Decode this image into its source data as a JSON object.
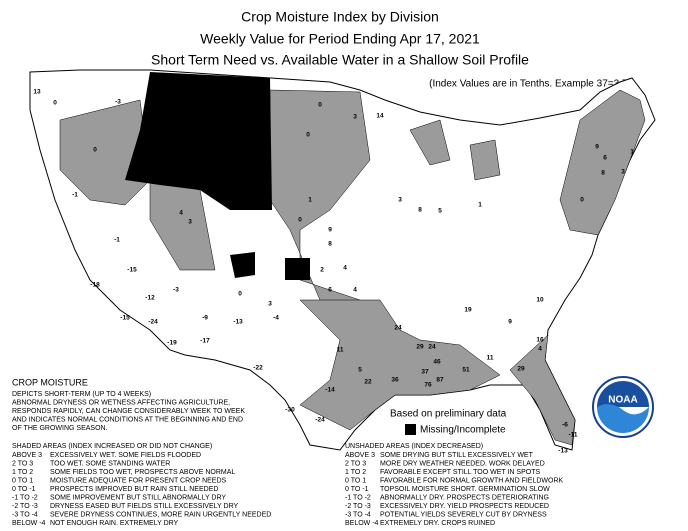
{
  "header": {
    "title": "Crop Moisture Index by Division",
    "subtitle": "Weekly Value for Period Ending Apr 17, 2021",
    "subtitle2": "Short Term Need vs. Available Water in a Shallow Soil Profile",
    "note": "(Index Values are in Tenths. Example 37=3.7)"
  },
  "map": {
    "divisions": [
      {
        "value": 13,
        "shaded": false
      },
      {
        "value": 0,
        "shaded": false
      },
      {
        "value": -3,
        "shaded": false
      },
      {
        "value": 0,
        "shaded": true
      },
      {
        "value": -1,
        "shaded": true
      },
      {
        "value": -1,
        "shaded": false
      },
      {
        "value": -15,
        "shaded": false
      },
      {
        "value": -18,
        "shaded": false
      },
      {
        "value": -15,
        "shaded": false
      },
      {
        "value": -12,
        "shaded": false
      },
      {
        "value": -24,
        "shaded": false
      },
      {
        "value": -19,
        "shaded": false
      },
      {
        "value": -3,
        "shaded": false
      },
      {
        "value": 0,
        "shaded": true
      },
      {
        "value": -9,
        "shaded": false
      },
      {
        "value": -17,
        "shaded": false
      },
      {
        "value": -13,
        "shaded": true
      },
      {
        "value": -22,
        "shaded": false
      },
      {
        "value": 3,
        "shaded": false
      },
      {
        "value": -4,
        "shaded": false
      },
      {
        "value": 4,
        "shaded": true
      },
      {
        "value": 3,
        "shaded": true
      },
      {
        "value": 0,
        "shaded": true
      },
      {
        "value": 1,
        "shaded": false
      },
      {
        "value": 9,
        "shaded": false
      },
      {
        "value": 8,
        "shaded": false
      },
      {
        "value": 2,
        "shaded": false
      },
      {
        "value": 4,
        "shaded": false
      },
      {
        "value": 6,
        "shaded": true
      },
      {
        "value": 4,
        "shaded": true
      },
      {
        "value": 0,
        "shaded": true
      },
      {
        "value": 0,
        "shaded": true
      },
      {
        "value": 14,
        "shaded": false
      },
      {
        "value": 3,
        "shaded": false
      },
      {
        "value": 3,
        "shaded": false
      },
      {
        "value": 8,
        "shaded": false
      },
      {
        "value": 5,
        "shaded": false
      },
      {
        "value": 1,
        "shaded": false
      },
      {
        "value": 11,
        "shaded": true
      },
      {
        "value": 5,
        "shaded": true
      },
      {
        "value": 22,
        "shaded": true
      },
      {
        "value": -14,
        "shaded": true
      },
      {
        "value": -30,
        "shaded": true
      },
      {
        "value": -24,
        "shaded": true
      },
      {
        "value": 24,
        "shaded": false
      },
      {
        "value": 29,
        "shaded": true
      },
      {
        "value": 24,
        "shaded": true
      },
      {
        "value": 46,
        "shaded": true
      },
      {
        "value": 36,
        "shaded": true
      },
      {
        "value": 37,
        "shaded": true
      },
      {
        "value": 76,
        "shaded": true
      },
      {
        "value": 87,
        "shaded": true
      },
      {
        "value": 51,
        "shaded": true
      },
      {
        "value": 11,
        "shaded": false
      },
      {
        "value": 29,
        "shaded": true
      },
      {
        "value": 4,
        "shaded": true
      },
      {
        "value": -6,
        "shaded": true
      },
      {
        "value": -11,
        "shaded": true
      },
      {
        "value": -13,
        "shaded": false
      },
      {
        "value": 10,
        "shaded": false
      },
      {
        "value": 16,
        "shaded": false
      },
      {
        "value": 19,
        "shaded": false
      },
      {
        "value": 9,
        "shaded": false
      },
      {
        "value": 6,
        "shaded": true
      },
      {
        "value": 3,
        "shaded": true
      },
      {
        "value": 8,
        "shaded": true
      },
      {
        "value": 1,
        "shaded": true
      },
      {
        "value": 9,
        "shaded": true
      },
      {
        "value": 0,
        "shaded": false
      }
    ]
  },
  "legend": {
    "based_on": "Based on preliminary data",
    "missing": "Missing/Incomplete"
  },
  "description": {
    "title": "CROP MOISTURE",
    "lines": [
      "DEPICTS SHORT-TERM (UP TO 4 WEEKS)",
      "ABNORMAL DRYNESS OR WETNESS AFFECTING AGRICULTURE,",
      "RESPONDS RAPIDLY, CAN CHANGE CONSIDERABLY WEEK TO WEEK",
      "AND INDICATES NORMAL CONDITIONS AT THE BEGINNING AND END",
      "OF THE GROWING SEASON."
    ]
  },
  "shaded": {
    "title": "SHADED AREAS (INDEX INCREASED OR DID NOT CHANGE)",
    "rows": [
      {
        "range": "ABOVE 3",
        "text": "EXCESSIVELY WET. SOME FIELDS FLOODED"
      },
      {
        "range": "2 TO 3",
        "text": "TOO WET. SOME STANDING WATER"
      },
      {
        "range": "1 TO 2",
        "text": "SOME FIELDS TOO WET, PROSPECTS ABOVE NORMAL"
      },
      {
        "range": "0 TO 1",
        "text": "MOISTURE ADEQUATE FOR PRESENT CROP NEEDS"
      },
      {
        "range": "0 TO -1",
        "text": "PROSPECTS IMPROVED BUT RAIN STILL NEEDED"
      },
      {
        "range": "-1 TO -2",
        "text": "SOME IMPROVEMENT BUT STILL ABNORMALLY DRY"
      },
      {
        "range": "-2 TO -3",
        "text": "DRYNESS EASED BUT FIELDS STILL EXCESSIVELY DRY"
      },
      {
        "range": "-3 TO -4",
        "text": "SEVERE DRYNESS CONTINUES, MORE RAIN URGENTLY NEEDED"
      },
      {
        "range": "BELOW -4",
        "text": "NOT ENOUGH RAIN. EXTREMELY DRY"
      }
    ]
  },
  "unshaded": {
    "title": "UNSHADED AREAS (INDEX DECREASED)",
    "rows": [
      {
        "range": "ABOVE 3",
        "text": "SOME DRYING BUT STILL EXCESSIVELY WET"
      },
      {
        "range": "2 TO 3",
        "text": "MORE DRY WEATHER NEEDED. WORK DELAYED"
      },
      {
        "range": "1 TO 2",
        "text": "FAVORABLE EXCEPT STILL TOO WET IN SPOTS"
      },
      {
        "range": "0 TO 1",
        "text": "FAVORABLE FOR NORMAL GROWTH AND FIELDWORK"
      },
      {
        "range": "0 TO -1",
        "text": "TOPSOIL MOISTURE SHORT. GERMINATION SLOW"
      },
      {
        "range": "-1 TO -2",
        "text": "ABNORMALLY DRY. PROSPECTS DETERIORATING"
      },
      {
        "range": "-2 TO -3",
        "text": "EXCESSIVELY DRY. YIELD PROSPECTS REDUCED"
      },
      {
        "range": "-3 TO -4",
        "text": "POTENTIAL YIELDS SEVERELY CUT BY DRYNESS"
      },
      {
        "range": "BELOW -4",
        "text": "EXTREMELY DRY. CROPS RUINED"
      }
    ]
  },
  "logo": {
    "text": "NOAA"
  }
}
